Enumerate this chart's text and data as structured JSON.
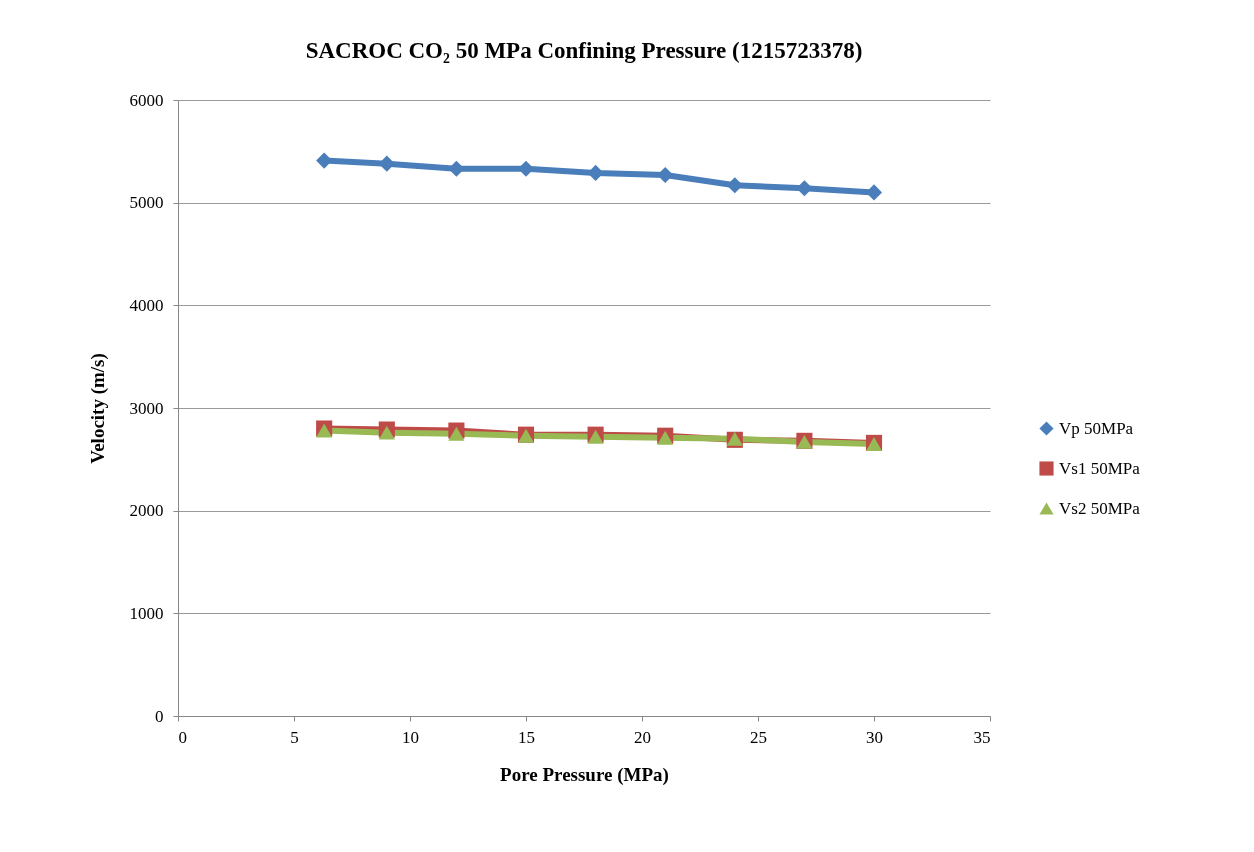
{
  "chart_data": {
    "type": "line",
    "title": "SACROC CO₂ 50 MPa Confining Pressure (1215723378)",
    "xlabel": "Pore Pressure (MPa)",
    "ylabel": "Velocity (m/s)",
    "x": [
      6.3,
      9,
      12,
      15,
      18,
      21,
      24,
      27,
      30
    ],
    "series": [
      {
        "name": "Vp 50MPa",
        "color": "#4a7ebb",
        "marker": "diamond",
        "values": [
          5410,
          5380,
          5330,
          5330,
          5290,
          5270,
          5170,
          5140,
          5100
        ]
      },
      {
        "name": "Vs1 50MPa",
        "color": "#be4b48",
        "marker": "square",
        "values": [
          2800,
          2790,
          2780,
          2740,
          2740,
          2730,
          2690,
          2680,
          2660
        ]
      },
      {
        "name": "Vs2 50MPa",
        "color": "#98b954",
        "marker": "triangle",
        "values": [
          2780,
          2760,
          2750,
          2730,
          2720,
          2710,
          2700,
          2670,
          2650
        ]
      }
    ],
    "xlim": [
      0,
      35
    ],
    "xticks": [
      0,
      5,
      10,
      15,
      20,
      25,
      30,
      35
    ],
    "ylim": [
      0,
      6000
    ],
    "yticks": [
      0,
      1000,
      2000,
      3000,
      4000,
      5000,
      6000
    ],
    "grid": "y",
    "legend": "right",
    "line_style": "solid"
  }
}
